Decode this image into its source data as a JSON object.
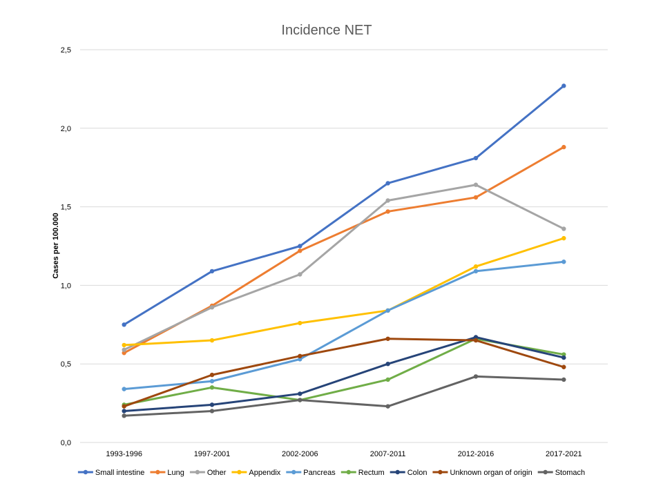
{
  "chart_data": {
    "type": "line",
    "title": "Incidence NET",
    "xlabel": "",
    "ylabel": "Cases per 100.000",
    "categories": [
      "1993-1996",
      "1997-2001",
      "2002-2006",
      "2007-2011",
      "2012-2016",
      "2017-2021"
    ],
    "ylim": [
      0,
      2.5
    ],
    "yticks": [
      "0,0",
      "0,5",
      "1,0",
      "1,5",
      "2,0",
      "2,5"
    ],
    "grid": true,
    "legend_position": "bottom",
    "series": [
      {
        "name": "Small intestine",
        "color": "#4472c4",
        "values": [
          0.75,
          1.09,
          1.25,
          1.65,
          1.81,
          2.27
        ]
      },
      {
        "name": "Lung",
        "color": "#ed7d31",
        "values": [
          0.57,
          0.87,
          1.22,
          1.47,
          1.56,
          1.88
        ]
      },
      {
        "name": "Other",
        "color": "#a5a5a5",
        "values": [
          0.59,
          0.86,
          1.07,
          1.54,
          1.64,
          1.36
        ]
      },
      {
        "name": "Appendix",
        "color": "#ffc000",
        "values": [
          0.62,
          0.65,
          0.76,
          0.84,
          1.12,
          1.3
        ]
      },
      {
        "name": "Pancreas",
        "color": "#5b9bd5",
        "values": [
          0.34,
          0.39,
          0.53,
          0.84,
          1.09,
          1.15
        ]
      },
      {
        "name": "Rectum",
        "color": "#70ad47",
        "values": [
          0.24,
          0.35,
          0.27,
          0.4,
          0.66,
          0.56
        ]
      },
      {
        "name": "Colon",
        "color": "#264478",
        "values": [
          0.2,
          0.24,
          0.31,
          0.5,
          0.67,
          0.54
        ]
      },
      {
        "name": "Unknown organ of origin",
        "color": "#9e480e",
        "values": [
          0.23,
          0.43,
          0.55,
          0.66,
          0.65,
          0.48
        ]
      },
      {
        "name": "Stomach",
        "color": "#636363",
        "values": [
          0.17,
          0.2,
          0.27,
          0.23,
          0.42,
          0.4
        ]
      }
    ]
  }
}
